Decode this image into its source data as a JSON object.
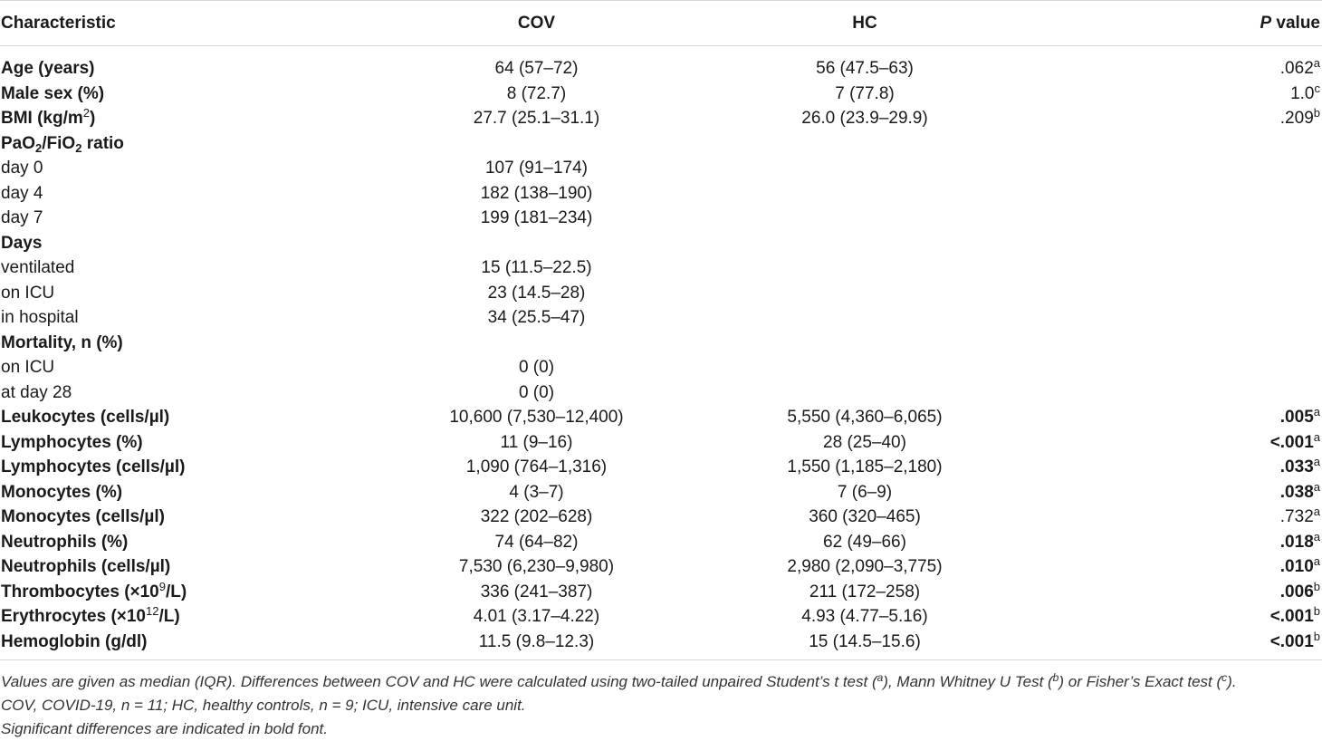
{
  "header": {
    "characteristic": "Characteristic",
    "cov": "COV",
    "hc": "HC",
    "p_italic": "P",
    "p_rest": " value"
  },
  "rows": [
    {
      "label": "Age (years)",
      "bold": true,
      "cov": "64 (57–72)",
      "hc": "56 (47.5–63)",
      "p": ".062",
      "sup": "a",
      "pbold": false
    },
    {
      "label": "Male sex (%)",
      "bold": true,
      "cov": "8 (72.7)",
      "hc": "7 (77.8)",
      "p": "1.0",
      "sup": "c",
      "pbold": false
    },
    {
      "label": "BMI (kg/m",
      "label_sup": "2",
      "label_after": ")",
      "bold": true,
      "cov": "27.7 (25.1–31.1)",
      "hc": "26.0 (23.9–29.9)",
      "p": ".209",
      "sup": "b",
      "pbold": false
    },
    {
      "label": "PaO",
      "label_sub": "2",
      "label_mid": "/FiO",
      "label_sub2": "2",
      "label_after": " ratio",
      "bold": true,
      "cov": "",
      "hc": "",
      "p": "",
      "sup": "",
      "pbold": false
    },
    {
      "label": "day 0",
      "bold": false,
      "cov": "107 (91–174)",
      "hc": "",
      "p": "",
      "sup": "",
      "pbold": false
    },
    {
      "label": "day 4",
      "bold": false,
      "cov": "182 (138–190)",
      "hc": "",
      "p": "",
      "sup": "",
      "pbold": false
    },
    {
      "label": "day 7",
      "bold": false,
      "cov": "199 (181–234)",
      "hc": "",
      "p": "",
      "sup": "",
      "pbold": false
    },
    {
      "label": "Days",
      "bold": true,
      "cov": "",
      "hc": "",
      "p": "",
      "sup": "",
      "pbold": false
    },
    {
      "label": "ventilated",
      "bold": false,
      "cov": "15 (11.5–22.5)",
      "hc": "",
      "p": "",
      "sup": "",
      "pbold": false
    },
    {
      "label": "on ICU",
      "bold": false,
      "cov": "23 (14.5–28)",
      "hc": "",
      "p": "",
      "sup": "",
      "pbold": false
    },
    {
      "label": "in hospital",
      "bold": false,
      "cov": "34 (25.5–47)",
      "hc": "",
      "p": "",
      "sup": "",
      "pbold": false
    },
    {
      "label": "Mortality, n (%)",
      "bold": true,
      "cov": "",
      "hc": "",
      "p": "",
      "sup": "",
      "pbold": false
    },
    {
      "label": "on ICU",
      "bold": false,
      "cov": "0 (0)",
      "hc": "",
      "p": "",
      "sup": "",
      "pbold": false
    },
    {
      "label": "at day 28",
      "bold": false,
      "cov": "0 (0)",
      "hc": "",
      "p": "",
      "sup": "",
      "pbold": false
    },
    {
      "label": "Leukocytes (cells/µl)",
      "bold": true,
      "cov": "10,600 (7,530–12,400)",
      "hc": "5,550 (4,360–6,065)",
      "p": ".005",
      "sup": "a",
      "pbold": true
    },
    {
      "label": "Lymphocytes (%)",
      "bold": true,
      "cov": "11 (9–16)",
      "hc": "28 (25–40)",
      "p": "<.001",
      "sup": "a",
      "pbold": true
    },
    {
      "label": "Lymphocytes (cells/µl)",
      "bold": true,
      "cov": "1,090 (764–1,316)",
      "hc": "1,550 (1,185–2,180)",
      "p": ".033",
      "sup": "a",
      "pbold": true
    },
    {
      "label": "Monocytes (%)",
      "bold": true,
      "cov": "4 (3–7)",
      "hc": "7 (6–9)",
      "p": ".038",
      "sup": "a",
      "pbold": true
    },
    {
      "label": "Monocytes (cells/µl)",
      "bold": true,
      "cov": "322 (202–628)",
      "hc": "360 (320–465)",
      "p": ".732",
      "sup": "a",
      "pbold": false
    },
    {
      "label": "Neutrophils (%)",
      "bold": true,
      "cov": "74 (64–82)",
      "hc": "62 (49–66)",
      "p": ".018",
      "sup": "a",
      "pbold": true
    },
    {
      "label": "Neutrophils (cells/µl)",
      "bold": true,
      "cov": "7,530 (6,230–9,980)",
      "hc": "2,980 (2,090–3,775)",
      "p": ".010",
      "sup": "a",
      "pbold": true
    },
    {
      "label": "Thrombocytes (×10",
      "label_sup": "9",
      "label_after": "/L)",
      "bold": true,
      "cov": "336 (241–387)",
      "hc": "211 (172–258)",
      "p": ".006",
      "sup": "b",
      "pbold": true
    },
    {
      "label": "Erythrocytes (×10",
      "label_sup": "12",
      "label_after": "/L)",
      "bold": true,
      "cov": "4.01 (3.17–4.22)",
      "hc": "4.93 (4.77–5.16)",
      "p": "<.001",
      "sup": "b",
      "pbold": true
    },
    {
      "label": "Hemoglobin (g/dl)",
      "bold": true,
      "cov": "11.5 (9.8–12.3)",
      "hc": "15 (14.5–15.6)",
      "p": "<.001",
      "sup": "b",
      "pbold": true
    }
  ],
  "notes": {
    "line1_a": "Values are given as median (IQR). Differences between COV and HC were calculated using two-tailed unpaired Student’s t test (",
    "line1_sup_a": "a",
    "line1_b": "), Mann Whitney U Test (",
    "line1_sup_b": "b",
    "line1_c": ") or Fisher’s Exact test (",
    "line1_sup_c": "c",
    "line1_d": ").",
    "line2": "COV, COVID-19, n = 11; HC, healthy controls, n = 9; ICU, intensive care unit.",
    "line3": "Significant differences are indicated in bold font."
  }
}
